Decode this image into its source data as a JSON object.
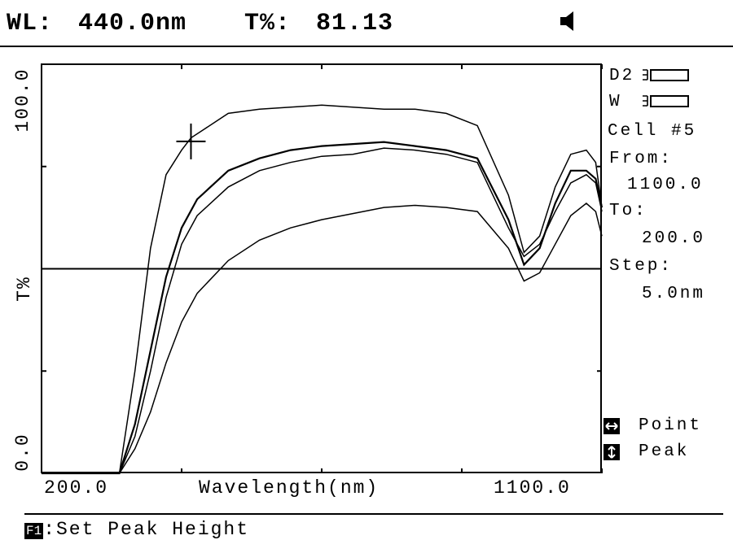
{
  "status_bar": {
    "wl_label": "WL:",
    "wl_value": "440.0nm",
    "t_label": "T%:",
    "t_value": "81.13",
    "speaker_icon": "speaker-icon"
  },
  "side_panel": {
    "d2_label": "D2",
    "w_label": "W",
    "lamp_icon": "lamp-indicator-icon",
    "cell_label": "Cell #5",
    "from_label": "From:",
    "from_value": "1100.0",
    "to_label": "To:",
    "to_value": "200.0",
    "step_label": "Step:",
    "step_value": "5.0nm",
    "point_key_icon": "horizontal-arrows-icon",
    "point_label": "Point",
    "peak_key_icon": "vertical-arrows-icon",
    "peak_label": "Peak"
  },
  "footer": {
    "key_label": "F1",
    "action_label": ":Set Peak Height"
  },
  "chart_data": {
    "type": "line",
    "xlabel": "Wavelength(nm)",
    "ylabel": "T%",
    "xlim": [
      200.0,
      1100.0
    ],
    "ylim": [
      0.0,
      100.0
    ],
    "x_tick_labels": [
      "200.0",
      "1100.0"
    ],
    "y_tick_labels": [
      "0.0",
      "100.0"
    ],
    "threshold_line": 50,
    "cursor": {
      "x": 440.0,
      "y": 81.13
    },
    "series": [
      {
        "x": [
          200,
          325,
          350,
          375,
          400,
          425,
          440,
          460,
          500,
          550,
          600,
          650,
          700,
          750,
          800,
          850,
          900,
          950,
          975,
          1000,
          1025,
          1050,
          1075,
          1090,
          1100
        ],
        "y": [
          0,
          0,
          25,
          55,
          73,
          79,
          82,
          84,
          88,
          89,
          89.5,
          90,
          89.5,
          89,
          89,
          88,
          85,
          68,
          54,
          58,
          70,
          78,
          79,
          76,
          65
        ]
      },
      {
        "x": [
          200,
          325,
          350,
          375,
          400,
          425,
          450,
          500,
          550,
          600,
          650,
          700,
          750,
          800,
          850,
          900,
          950,
          975,
          1000,
          1025,
          1050,
          1075,
          1090,
          1100
        ],
        "y": [
          0,
          0,
          12,
          30,
          48,
          60,
          67,
          74,
          77,
          79,
          80,
          80.5,
          81,
          80,
          79,
          77,
          62,
          51,
          55,
          66,
          74,
          74,
          72,
          65
        ]
      },
      {
        "x": [
          200,
          325,
          350,
          375,
          400,
          425,
          450,
          500,
          550,
          600,
          650,
          700,
          750,
          800,
          850,
          900,
          950,
          975,
          1000,
          1025,
          1050,
          1075,
          1090,
          1100
        ],
        "y": [
          0,
          0,
          9,
          25,
          43,
          56,
          63,
          70,
          74,
          76,
          77.5,
          78,
          79.5,
          79,
          78,
          76,
          60,
          53,
          56,
          64,
          71,
          73,
          71,
          64
        ]
      },
      {
        "x": [
          200,
          325,
          350,
          375,
          400,
          425,
          450,
          500,
          550,
          600,
          650,
          700,
          750,
          800,
          850,
          900,
          950,
          975,
          1000,
          1025,
          1050,
          1075,
          1090,
          1100
        ],
        "y": [
          0,
          0,
          6,
          15,
          27,
          37,
          44,
          52,
          57,
          60,
          62,
          63.5,
          65,
          65.5,
          65,
          64,
          55,
          47,
          49,
          56,
          63,
          66,
          64,
          58
        ]
      }
    ]
  }
}
